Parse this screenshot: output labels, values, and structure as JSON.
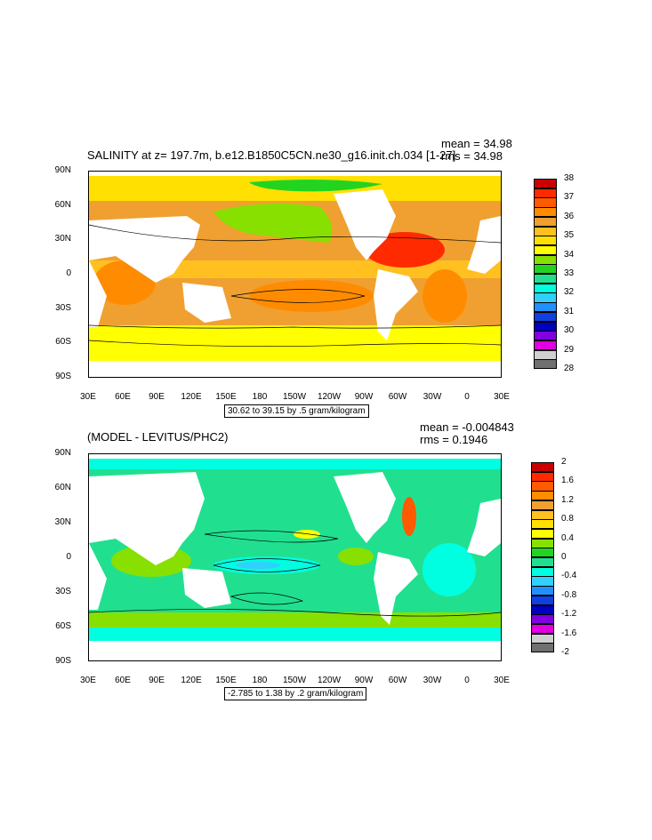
{
  "panels": [
    {
      "title": "SALINITY at z= 197.7m, b.e12.B1850C5CN.ne30_g16.init.ch.034 [1-27]",
      "mean": "mean = 34.98",
      "rms": "rms = 34.98",
      "range": "30.62 to 39.15 by .5 gram/kilogram",
      "lat_ticks": [
        "90N",
        "60N",
        "30N",
        "0",
        "30S",
        "60S",
        "90S"
      ],
      "lon_ticks": [
        "30E",
        "60E",
        "90E",
        "120E",
        "150E",
        "180",
        "150W",
        "120W",
        "90W",
        "60W",
        "30W",
        "0",
        "30E"
      ],
      "legend": {
        "labels": [
          "38",
          "37",
          "36",
          "35",
          "34",
          "33",
          "32",
          "31",
          "30",
          "29",
          "28"
        ],
        "colors": [
          "#c80000",
          "#ff2a00",
          "#ff5a00",
          "#ff8c00",
          "#f0a030",
          "#ffc020",
          "#ffe000",
          "#ffff00",
          "#88e000",
          "#22d420",
          "#20e090",
          "#00ffe0",
          "#30d0ff",
          "#2090ff",
          "#1040e0",
          "#0000c0",
          "#8000e0",
          "#e000e0",
          "#d0d0d0",
          "#707070"
        ]
      }
    },
    {
      "title": "(MODEL - LEVITUS/PHC2)",
      "mean": "mean = -0.004843",
      "rms": "rms = 0.1946",
      "range": "-2.785 to 1.38 by .2 gram/kilogram",
      "lat_ticks": [
        "90N",
        "60N",
        "30N",
        "0",
        "30S",
        "60S",
        "90S"
      ],
      "lon_ticks": [
        "30E",
        "60E",
        "90E",
        "120E",
        "150E",
        "180",
        "150W",
        "120W",
        "90W",
        "60W",
        "30W",
        "0",
        "30E"
      ],
      "legend": {
        "labels": [
          "2",
          "1.6",
          "1.2",
          "0.8",
          "0.4",
          "0",
          "-0.4",
          "-0.8",
          "-1.2",
          "-1.6",
          "-2"
        ],
        "colors": [
          "#c80000",
          "#ff2a00",
          "#ff5a00",
          "#ff8c00",
          "#f0a030",
          "#ffc020",
          "#ffe000",
          "#ffff00",
          "#88e000",
          "#22d420",
          "#20e090",
          "#00ffe0",
          "#30d0ff",
          "#2090ff",
          "#1040e0",
          "#0000c0",
          "#8000e0",
          "#e000e0",
          "#d0d0d0",
          "#707070"
        ]
      }
    }
  ]
}
